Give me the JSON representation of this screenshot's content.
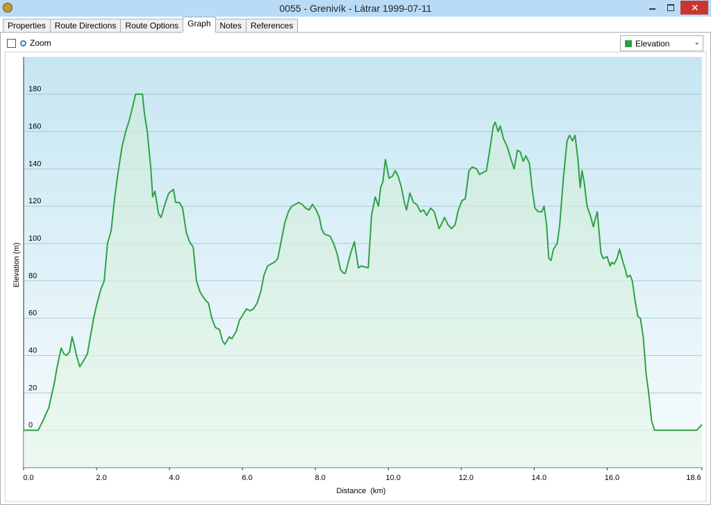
{
  "window": {
    "title": "0055 - Grenivík - Látrar 1999-07-11"
  },
  "tabs": [
    "Properties",
    "Route Directions",
    "Route Options",
    "Graph",
    "Notes",
    "References"
  ],
  "toolbar": {
    "zoom": "Zoom"
  },
  "chart_data": {
    "type": "line",
    "x_label": "Distance  (km)",
    "y_label": "Elevation (m)",
    "x": [
      0,
      0.4,
      0.53,
      0.69,
      0.84,
      0.91,
      1.03,
      1.1,
      1.18,
      1.26,
      1.33,
      1.37,
      1.45,
      1.54,
      1.64,
      1.75,
      1.83,
      1.92,
      2.0,
      2.11,
      2.21,
      2.3,
      2.4,
      2.5,
      2.59,
      2.7,
      2.8,
      2.91,
      3.07,
      3.26,
      3.31,
      3.39,
      3.49,
      3.54,
      3.6,
      3.7,
      3.77,
      3.89,
      3.98,
      4.11,
      4.17,
      4.27,
      4.36,
      4.46,
      4.55,
      4.65,
      4.74,
      4.84,
      4.97,
      5.07,
      5.16,
      5.26,
      5.37,
      5.45,
      5.52,
      5.64,
      5.71,
      5.83,
      5.92,
      6.02,
      6.11,
      6.21,
      6.3,
      6.4,
      6.5,
      6.59,
      6.69,
      6.78,
      6.88,
      6.97,
      7.07,
      7.16,
      7.26,
      7.35,
      7.45,
      7.54,
      7.64,
      7.73,
      7.83,
      7.92,
      8.02,
      8.11,
      8.17,
      8.25,
      8.4,
      8.5,
      8.59,
      8.69,
      8.78,
      8.82,
      8.97,
      9.07,
      9.18,
      9.26,
      9.45,
      9.54,
      9.64,
      9.73,
      9.79,
      9.85,
      9.92,
      10.02,
      10.11,
      10.19,
      10.27,
      10.36,
      10.44,
      10.5,
      10.59,
      10.69,
      10.78,
      10.88,
      10.97,
      11.05,
      11.16,
      11.26,
      11.39,
      11.45,
      11.54,
      11.64,
      11.73,
      11.83,
      11.92,
      12.02,
      12.11,
      12.21,
      12.3,
      12.42,
      12.5,
      12.59,
      12.69,
      12.78,
      12.88,
      12.93,
      13.01,
      13.07,
      13.16,
      13.26,
      13.35,
      13.45,
      13.54,
      13.62,
      13.7,
      13.77,
      13.87,
      13.94,
      14.02,
      14.11,
      14.21,
      14.27,
      14.34,
      14.4,
      14.46,
      14.53,
      14.63,
      14.7,
      14.8,
      14.9,
      14.97,
      15.05,
      15.12,
      15.2,
      15.26,
      15.31,
      15.37,
      15.45,
      15.54,
      15.62,
      15.66,
      15.73,
      15.83,
      15.89,
      16.0,
      16.08,
      16.13,
      16.19,
      16.27,
      16.34,
      16.42,
      16.5,
      16.55,
      16.63,
      16.69,
      16.76,
      16.84,
      16.91,
      16.99,
      17.07,
      17.14,
      17.22,
      17.3,
      18.46,
      18.6
    ],
    "series": [
      {
        "name": "Elevation",
        "color": "#2ea043",
        "values": [
          0,
          0,
          5,
          12,
          25,
          33,
          44,
          41,
          40,
          42,
          50,
          47,
          40,
          34,
          37,
          41,
          50,
          60,
          67,
          75,
          80,
          100,
          107,
          125,
          138,
          152,
          160,
          167,
          180,
          180,
          170,
          160,
          140,
          125,
          128,
          116,
          114,
          122,
          127,
          129,
          122,
          122,
          119,
          106,
          101,
          98,
          80,
          74,
          70,
          68,
          60,
          55,
          54,
          48,
          46,
          50,
          49,
          53,
          59,
          62,
          65,
          64,
          65,
          68,
          74,
          83,
          88,
          89,
          90,
          92,
          102,
          111,
          117,
          120,
          121,
          122,
          121,
          119,
          118,
          121,
          118,
          114,
          108,
          105,
          104,
          100,
          95,
          86,
          84,
          84,
          95,
          101,
          87,
          88,
          87,
          115,
          125,
          120,
          130,
          133,
          145,
          135,
          136,
          139,
          136,
          130,
          122,
          118,
          127,
          122,
          121,
          117,
          118,
          115,
          119,
          117,
          108,
          110,
          114,
          110,
          108,
          110,
          118,
          123,
          124,
          139,
          141,
          140,
          137,
          138,
          139,
          150,
          163,
          165,
          160,
          163,
          156,
          152,
          146,
          140,
          150,
          149,
          144,
          147,
          143,
          130,
          119,
          117,
          117,
          120,
          110,
          92,
          91,
          97,
          100,
          110,
          135,
          155,
          158,
          155,
          158,
          145,
          130,
          139,
          133,
          120,
          115,
          109,
          112,
          117,
          95,
          92,
          93,
          88,
          90,
          89,
          92,
          97,
          91,
          86,
          82,
          83,
          80,
          70,
          61,
          60,
          50,
          30,
          20,
          5,
          0,
          0,
          3
        ]
      }
    ],
    "xlim": [
      0,
      18.6
    ],
    "ylim": [
      -20,
      200
    ],
    "xticks": [
      {
        "value": 0,
        "label": "0.0"
      },
      {
        "value": 2,
        "label": "2.0"
      },
      {
        "value": 4,
        "label": "4.0"
      },
      {
        "value": 6,
        "label": "6.0"
      },
      {
        "value": 8,
        "label": "8.0"
      },
      {
        "value": 10,
        "label": "10.0"
      },
      {
        "value": 12,
        "label": "12.0"
      },
      {
        "value": 14,
        "label": "14.0"
      },
      {
        "value": 16,
        "label": "16.0"
      },
      18.6
    ],
    "yticks": [
      0,
      20,
      40,
      60,
      80,
      100,
      120,
      140,
      160,
      180
    ],
    "grid": true
  }
}
